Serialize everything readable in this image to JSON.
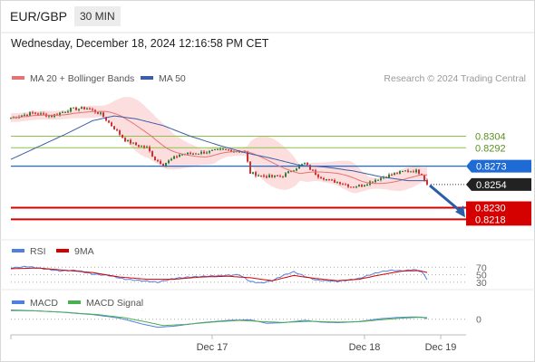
{
  "header": {
    "symbol": "EUR/GBP",
    "timeframe": "30 MIN",
    "datetime": "Wednesday, December 18, 2024 12:16:58 PM CET",
    "credit": "Research © 2024 Trading Central"
  },
  "colors": {
    "candle_up": "#2e7d32",
    "candle_down": "#d32f2f",
    "ma20": "#e57373",
    "bollinger_fill": "#fcdede",
    "ma50": "#3c5ea8",
    "resistance": "#8bc34a",
    "pivot": "#1e6bd6",
    "support": "#d50000",
    "last_price": "#222222",
    "rsi": "#4f7fe0",
    "rsi_ma": "#d50000",
    "macd": "#4f7fe0",
    "macd_signal": "#4caf50",
    "forecast_arrow": "#2a5ea8"
  },
  "chart_data": [
    {
      "panel": "price",
      "type": "candlestick",
      "legend_position": "top-left",
      "legend": [
        {
          "key": "ma20",
          "label": "MA 20 + Bollinger Bands"
        },
        {
          "key": "ma50",
          "label": "MA 50"
        }
      ],
      "x_ticks": [
        {
          "label": "Dec 17",
          "index": 74
        },
        {
          "label": "Dec 18",
          "index": 130
        },
        {
          "label": "Dec 19",
          "index": 158
        }
      ],
      "ylim": [
        0.82108,
        0.83513
      ],
      "levels": [
        {
          "value": 0.8304,
          "label": "0.8304",
          "kind": "resistance"
        },
        {
          "value": 0.8292,
          "label": "0.8292",
          "kind": "resistance"
        },
        {
          "value": 0.8273,
          "label": "0.8273",
          "kind": "pivot"
        },
        {
          "value": 0.8254,
          "label": "0.8254",
          "kind": "last"
        },
        {
          "value": 0.823,
          "label": "0.8230",
          "kind": "support"
        },
        {
          "value": 0.8218,
          "label": "0.8218",
          "kind": "support"
        }
      ],
      "forecast": {
        "from_index": 153,
        "from_value": 0.8253,
        "to_index": 167,
        "to_value": 0.822
      },
      "close_waypoints": [
        [
          0,
          0.8323
        ],
        [
          8,
          0.8328
        ],
        [
          15,
          0.8325
        ],
        [
          22,
          0.8332
        ],
        [
          28,
          0.8333
        ],
        [
          33,
          0.8327
        ],
        [
          37,
          0.8315
        ],
        [
          42,
          0.83
        ],
        [
          46,
          0.8295
        ],
        [
          50,
          0.8292
        ],
        [
          53,
          0.828
        ],
        [
          56,
          0.8275
        ],
        [
          62,
          0.8285
        ],
        [
          70,
          0.8287
        ],
        [
          78,
          0.829
        ],
        [
          86,
          0.8288
        ],
        [
          88,
          0.8266
        ],
        [
          92,
          0.8263
        ],
        [
          96,
          0.8262
        ],
        [
          100,
          0.8263
        ],
        [
          104,
          0.827
        ],
        [
          108,
          0.8276
        ],
        [
          110,
          0.827
        ],
        [
          113,
          0.8263
        ],
        [
          117,
          0.8258
        ],
        [
          121,
          0.8256
        ],
        [
          125,
          0.8252
        ],
        [
          129,
          0.8253
        ],
        [
          133,
          0.8258
        ],
        [
          137,
          0.8262
        ],
        [
          141,
          0.8265
        ],
        [
          145,
          0.8268
        ],
        [
          149,
          0.8268
        ],
        [
          151,
          0.8265
        ],
        [
          153,
          0.8254
        ]
      ],
      "ma50_waypoints": [
        [
          0,
          0.828
        ],
        [
          10,
          0.8293
        ],
        [
          20,
          0.8306
        ],
        [
          30,
          0.832
        ],
        [
          38,
          0.8325
        ],
        [
          46,
          0.8322
        ],
        [
          56,
          0.8315
        ],
        [
          66,
          0.8304
        ],
        [
          76,
          0.8295
        ],
        [
          86,
          0.8287
        ],
        [
          96,
          0.8281
        ],
        [
          106,
          0.8274
        ],
        [
          116,
          0.8272
        ],
        [
          126,
          0.8268
        ],
        [
          136,
          0.8262
        ],
        [
          146,
          0.8258
        ],
        [
          153,
          0.8258
        ]
      ]
    },
    {
      "panel": "rsi",
      "type": "line",
      "legend": [
        {
          "key": "rsi",
          "label": "RSI"
        },
        {
          "key": "rsi_ma",
          "label": "9MA"
        }
      ],
      "ylim": [
        20,
        78
      ],
      "levels": [
        {
          "value": 70,
          "label": "70"
        },
        {
          "value": 50,
          "label": "50"
        },
        {
          "value": 30,
          "label": "30"
        }
      ],
      "rsi_waypoints": [
        [
          0,
          68
        ],
        [
          6,
          72
        ],
        [
          12,
          66
        ],
        [
          18,
          60
        ],
        [
          24,
          62
        ],
        [
          30,
          52
        ],
        [
          36,
          48
        ],
        [
          42,
          38
        ],
        [
          48,
          34
        ],
        [
          54,
          30
        ],
        [
          60,
          40
        ],
        [
          66,
          44
        ],
        [
          72,
          46
        ],
        [
          78,
          48
        ],
        [
          84,
          50
        ],
        [
          88,
          32
        ],
        [
          92,
          28
        ],
        [
          96,
          34
        ],
        [
          100,
          48
        ],
        [
          104,
          58
        ],
        [
          108,
          46
        ],
        [
          112,
          36
        ],
        [
          116,
          34
        ],
        [
          120,
          32
        ],
        [
          124,
          36
        ],
        [
          128,
          40
        ],
        [
          132,
          50
        ],
        [
          136,
          58
        ],
        [
          140,
          62
        ],
        [
          144,
          60
        ],
        [
          148,
          64
        ],
        [
          151,
          58
        ],
        [
          153,
          38
        ]
      ],
      "ma9_waypoints": [
        [
          0,
          66
        ],
        [
          10,
          68
        ],
        [
          20,
          62
        ],
        [
          30,
          56
        ],
        [
          40,
          44
        ],
        [
          50,
          38
        ],
        [
          60,
          38
        ],
        [
          70,
          44
        ],
        [
          80,
          46
        ],
        [
          88,
          42
        ],
        [
          96,
          34
        ],
        [
          104,
          48
        ],
        [
          112,
          40
        ],
        [
          120,
          34
        ],
        [
          128,
          38
        ],
        [
          136,
          50
        ],
        [
          144,
          60
        ],
        [
          150,
          61
        ],
        [
          153,
          56
        ]
      ]
    },
    {
      "panel": "macd",
      "type": "line",
      "legend": [
        {
          "key": "macd",
          "label": "MACD"
        },
        {
          "key": "macd_signal",
          "label": "MACD Signal"
        }
      ],
      "ylim": [
        -0.0012,
        0.001
      ],
      "levels": [
        {
          "value": 0,
          "label": "0"
        }
      ],
      "macd_waypoints": [
        [
          0,
          0.0008
        ],
        [
          8,
          0.00074
        ],
        [
          18,
          0.00062
        ],
        [
          30,
          0.0004
        ],
        [
          40,
          0.0001
        ],
        [
          48,
          -0.0004
        ],
        [
          54,
          -0.0007
        ],
        [
          60,
          -0.0006
        ],
        [
          70,
          -0.0003
        ],
        [
          80,
          -0.0001
        ],
        [
          88,
          -5e-05
        ],
        [
          94,
          -0.00035
        ],
        [
          100,
          -0.0003
        ],
        [
          108,
          -0.0001
        ],
        [
          114,
          -0.00025
        ],
        [
          120,
          -0.0003
        ],
        [
          128,
          -0.0002
        ],
        [
          136,
          5e-05
        ],
        [
          142,
          0.00015
        ],
        [
          148,
          0.0002
        ],
        [
          151,
          0.00018
        ],
        [
          153,
          5e-05
        ]
      ],
      "signal_waypoints": [
        [
          0,
          0.00075
        ],
        [
          10,
          0.00072
        ],
        [
          20,
          0.0006
        ],
        [
          32,
          0.0004
        ],
        [
          42,
          0.00012
        ],
        [
          50,
          -0.00025
        ],
        [
          56,
          -0.00055
        ],
        [
          64,
          -0.00045
        ],
        [
          74,
          -0.00025
        ],
        [
          84,
          -0.0001
        ],
        [
          92,
          -0.0002
        ],
        [
          100,
          -0.00028
        ],
        [
          110,
          -0.00018
        ],
        [
          120,
          -0.00025
        ],
        [
          128,
          -0.00022
        ],
        [
          136,
          -5e-05
        ],
        [
          144,
          0.0001
        ],
        [
          150,
          0.00016
        ],
        [
          153,
          0.00014
        ]
      ]
    }
  ]
}
